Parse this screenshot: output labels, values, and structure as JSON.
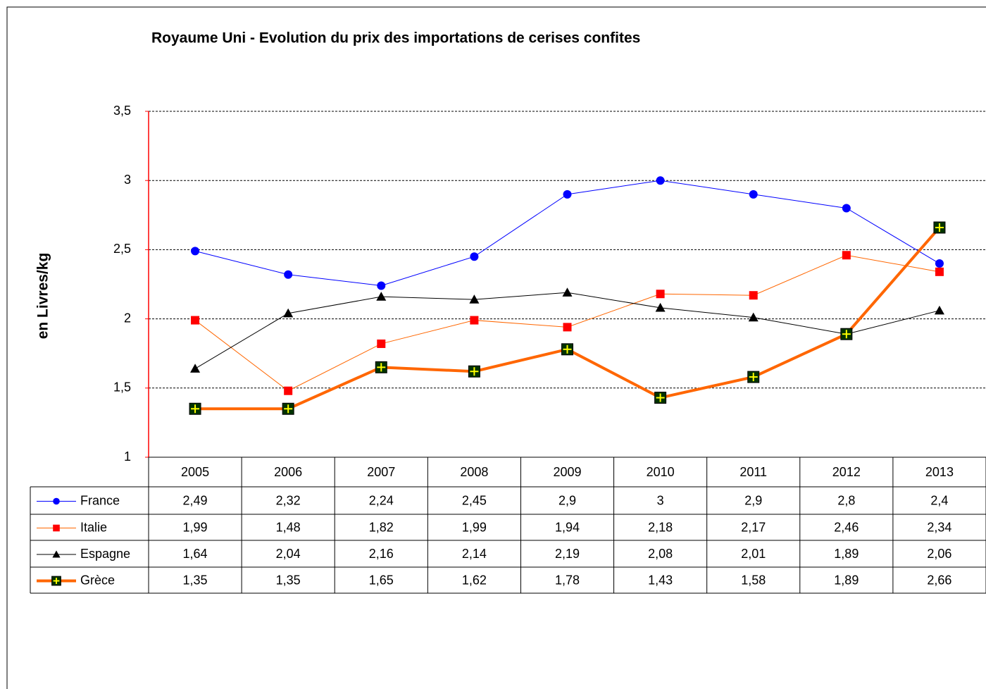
{
  "chart_data": {
    "type": "line",
    "title": "Royaume Uni - Evolution du prix des importations de cerises confites",
    "y_label": "en Livres/kg",
    "categories": [
      "2005",
      "2006",
      "2007",
      "2008",
      "2009",
      "2010",
      "2011",
      "2012",
      "2013"
    ],
    "ylim": [
      1,
      3.5
    ],
    "yticks": [
      1,
      {
        "value": 1.5,
        "label": "1,5"
      },
      2,
      {
        "value": 2.5,
        "label": "2,5"
      },
      3,
      {
        "value": 3.5,
        "label": "3,5"
      }
    ],
    "grid": true,
    "series": [
      {
        "name": "France",
        "color": "#0000ff",
        "marker": "circle",
        "marker_color": "#0000ff",
        "line_width": 1,
        "values": [
          2.49,
          2.32,
          2.24,
          2.45,
          2.9,
          3,
          2.9,
          2.8,
          2.4
        ],
        "value_labels": [
          "2,49",
          "2,32",
          "2,24",
          "2,45",
          "2,9",
          "3",
          "2,9",
          "2,8",
          "2,4"
        ]
      },
      {
        "name": "Italie",
        "color": "#ff6600",
        "marker": "square",
        "marker_color": "#ff0000",
        "line_width": 1,
        "values": [
          1.99,
          1.48,
          1.82,
          1.99,
          1.94,
          2.18,
          2.17,
          2.46,
          2.34
        ],
        "value_labels": [
          "1,99",
          "1,48",
          "1,82",
          "1,99",
          "1,94",
          "2,18",
          "2,17",
          "2,46",
          "2,34"
        ]
      },
      {
        "name": "Espagne",
        "color": "#000000",
        "marker": "triangle",
        "marker_color": "#000000",
        "line_width": 1,
        "values": [
          1.64,
          2.04,
          2.16,
          2.14,
          2.19,
          2.08,
          2.01,
          1.89,
          2.06
        ],
        "value_labels": [
          "1,64",
          "2,04",
          "2,16",
          "2,14",
          "2,19",
          "2,08",
          "2,01",
          "1,89",
          "2,06"
        ]
      },
      {
        "name": "Grèce",
        "color": "#ff6600",
        "marker": "cross-square",
        "marker_color": "#003300",
        "line_width": 4,
        "values": [
          1.35,
          1.35,
          1.65,
          1.62,
          1.78,
          1.43,
          1.58,
          1.89,
          2.66
        ],
        "value_labels": [
          "1,35",
          "1,35",
          "1,65",
          "1,62",
          "1,78",
          "1,43",
          "1,58",
          "1,89",
          "2,66"
        ]
      }
    ]
  }
}
